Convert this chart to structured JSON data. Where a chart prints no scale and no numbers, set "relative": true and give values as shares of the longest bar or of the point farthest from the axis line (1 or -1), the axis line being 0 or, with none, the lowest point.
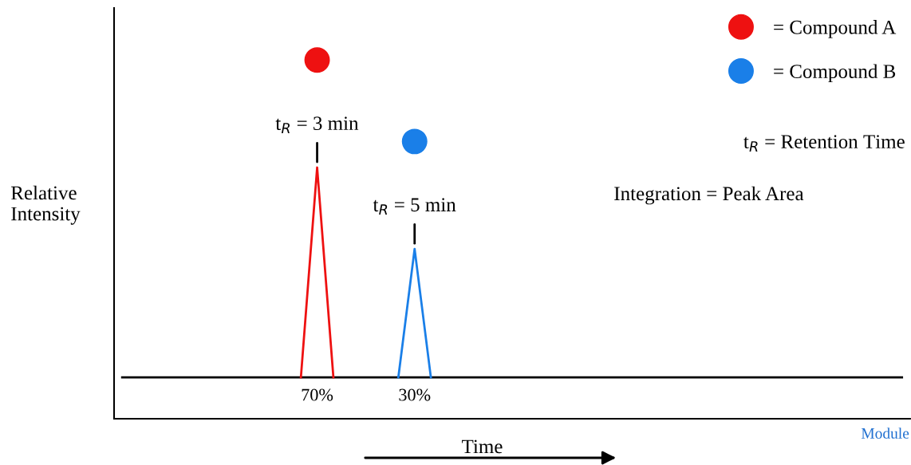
{
  "chart_data": {
    "type": "line",
    "relative": true,
    "xlabel": "Time",
    "ylabel": "Relative\nIntensity",
    "categories": [
      null,
      null,
      null,
      null,
      null,
      null,
      null,
      null,
      null,
      null,
      null,
      null,
      null,
      null,
      null,
      null,
      null,
      null,
      null,
      null,
      null,
      null,
      null,
      null,
      null,
      null,
      null,
      null,
      null,
      null,
      null,
      null,
      null,
      null,
      null,
      null,
      null,
      null,
      null,
      null,
      null,
      null,
      null,
      null,
      null,
      null,
      null,
      null,
      null
    ],
    "series": [
      {
        "color": "#000000",
        "values": [
          0.165,
          0.165,
          0.165,
          0.165,
          0.165,
          0.165,
          0.165,
          0.165,
          0.165,
          0.165,
          0.165,
          0.165,
          0.165,
          0.165,
          0.165,
          0.165,
          0.165,
          0.165,
          0.165,
          0.165,
          0.165,
          0.165,
          0.165,
          0.165,
          0.165,
          0.165,
          0.165,
          0.165,
          0.165,
          0.165,
          0.165,
          0.165,
          0.165,
          0.165,
          0.165,
          0.165,
          0.165,
          0.165,
          0.165,
          0.165,
          0.165,
          0.165,
          0.165,
          0.165,
          0.165,
          0.165,
          0.165,
          0.165,
          0.165
        ]
      },
      {
        "name": "= Compound A",
        "color": "#ee1111",
        "values": [
          null,
          null,
          null,
          null,
          null,
          null,
          null,
          null,
          null,
          null,
          null,
          0.165,
          1,
          0.165,
          null,
          null,
          null,
          null,
          null,
          null,
          null,
          null,
          null,
          null,
          null,
          null,
          null,
          null,
          null,
          null,
          null,
          null,
          null,
          null,
          null,
          null,
          null,
          null,
          null,
          null,
          null,
          null,
          null,
          null,
          null,
          null,
          null,
          null,
          null
        ]
      },
      {
        "name": "= Compound B",
        "color": "#1a7fe8",
        "values": [
          null,
          null,
          null,
          null,
          null,
          null,
          null,
          null,
          null,
          null,
          null,
          null,
          null,
          null,
          null,
          null,
          null,
          0.165,
          0.676,
          0.165,
          null,
          null,
          null,
          null,
          null,
          null,
          null,
          null,
          null,
          null,
          null,
          null,
          null,
          null,
          null,
          null,
          null,
          null,
          null,
          null,
          null,
          null,
          null,
          null,
          null,
          null,
          null,
          null,
          null
        ]
      }
    ],
    "annotations": [
      "t$_{R}$ = 3 min",
      "t$_{R}$ = 5 min",
      "70%",
      "30%",
      "t$_{R}$ = Retention Time",
      "Integration = Peak Area",
      "Module"
    ],
    "legend": "top right",
    "marker": "none",
    "line_style": "solid"
  }
}
